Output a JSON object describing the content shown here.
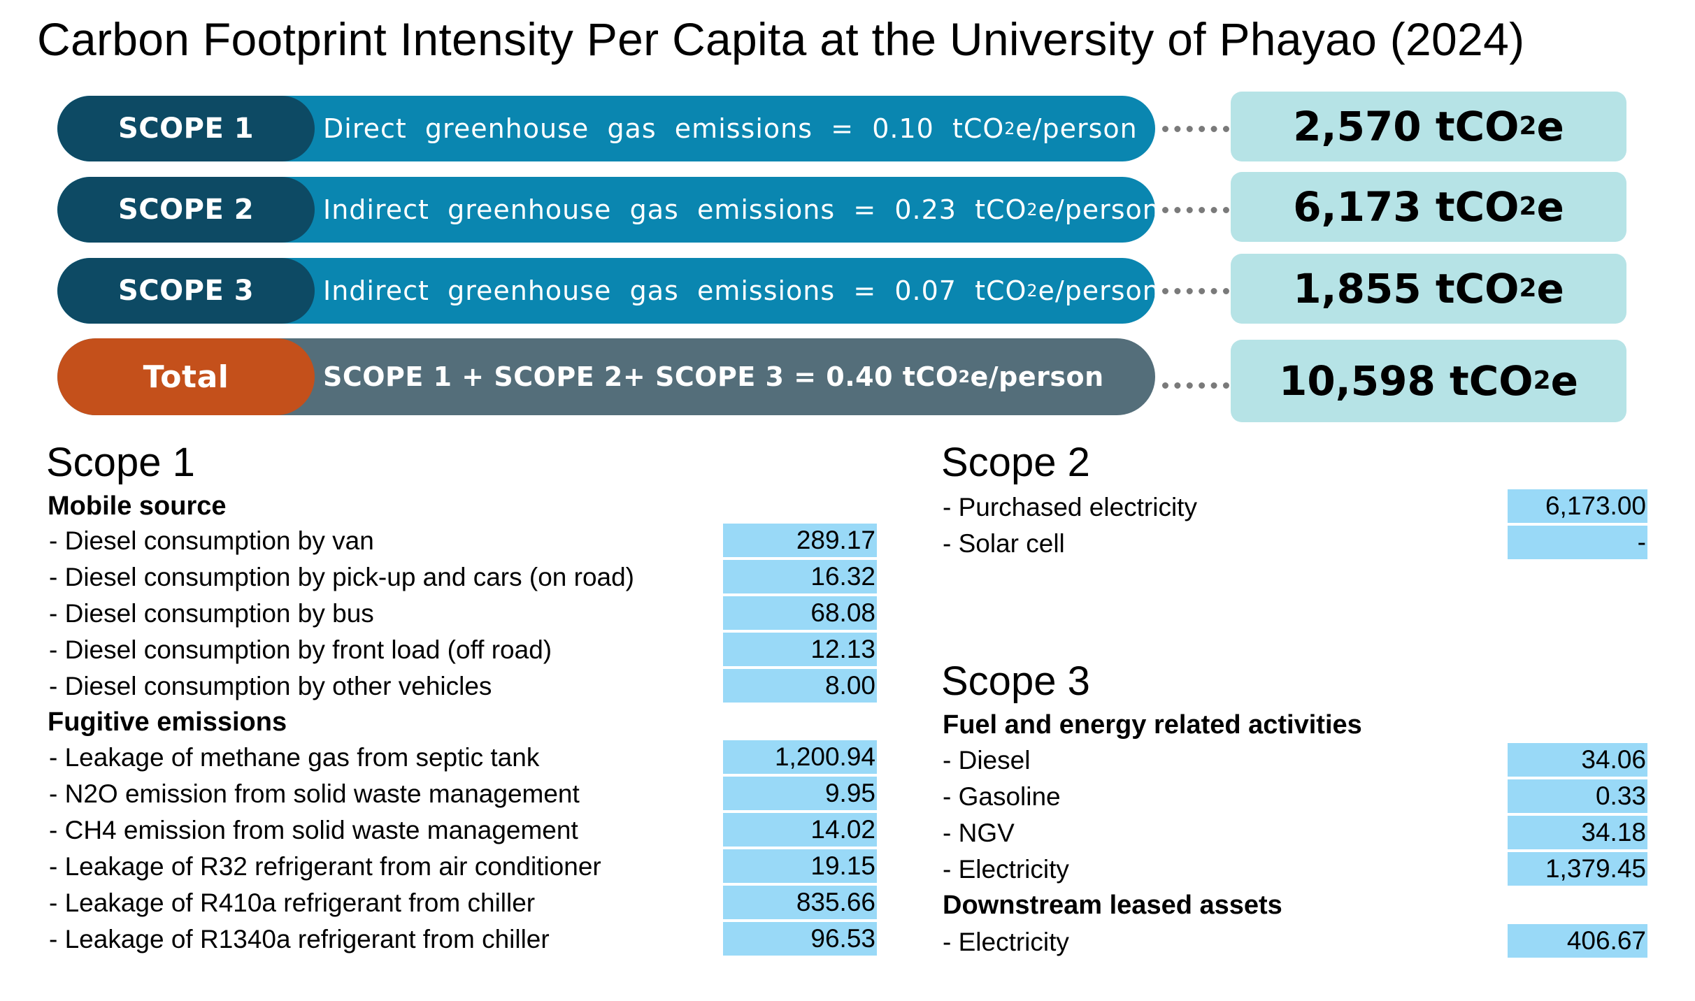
{
  "title": "Carbon Footprint Intensity Per Capita at the University of Phayao (2024)",
  "summary": [
    {
      "tag": "SCOPE 1",
      "desc_pre": "Direct  greenhouse  gas  emissions  =  0.10  tCO",
      "desc_sub": "2",
      "desc_post": "e/person",
      "value_pre": "2,570 tCO",
      "value_sub": "2",
      "value_post": "e"
    },
    {
      "tag": "SCOPE 2",
      "desc_pre": "Indirect  greenhouse  gas  emissions  =  0.23  tCO",
      "desc_sub": "2",
      "desc_post": "e/person",
      "value_pre": "6,173 tCO",
      "value_sub": "2",
      "value_post": "e"
    },
    {
      "tag": "SCOPE 3",
      "desc_pre": "Indirect  greenhouse  gas  emissions  =  0.07  tCO",
      "desc_sub": "2",
      "desc_post": "e/person",
      "value_pre": "1,855 tCO",
      "value_sub": "2",
      "value_post": "e"
    },
    {
      "tag": "Total",
      "desc_pre": "SCOPE 1 + SCOPE 2+ SCOPE 3 = 0.40 tCO",
      "desc_sub": "2",
      "desc_post": "e/person",
      "value_pre": "10,598 tCO",
      "value_sub": "2",
      "value_post": "e"
    }
  ],
  "colors": {
    "bar": "#0a86b0",
    "bar_tag": "#0d4a64",
    "total_bar": "#546e7a",
    "total_tag": "#c4501b",
    "value_box": "#b6e3e6",
    "cell": "#99d9f7"
  },
  "scope1": {
    "heading": "Scope 1",
    "mobile_heading": "Mobile source",
    "mobile": [
      {
        "label": " - Diesel consumption by van",
        "value": "289.17"
      },
      {
        "label": " - Diesel consumption by pick-up and cars (on road)",
        "value": "16.32"
      },
      {
        "label": " - Diesel consumption by bus",
        "value": "68.08"
      },
      {
        "label": " - Diesel consumption by front load (off road)",
        "value": "12.13"
      },
      {
        "label": " - Diesel consumption by other vehicles",
        "value": "8.00"
      }
    ],
    "fugitive_heading": "Fugitive emissions",
    "fugitive": [
      {
        "label": " - Leakage of methane gas from septic tank",
        "value": "1,200.94"
      },
      {
        "label": " - N2O emission from solid waste management",
        "value": "9.95"
      },
      {
        "label": " - CH4 emission from solid waste management",
        "value": "14.02"
      },
      {
        "label": " - Leakage of R32 refrigerant from air conditioner",
        "value": "19.15"
      },
      {
        "label": " - Leakage of R410a refrigerant from chiller",
        "value": "835.66"
      },
      {
        "label": " - Leakage of R1340a refrigerant from chiller",
        "value": "96.53"
      }
    ]
  },
  "scope2": {
    "heading": "Scope 2",
    "items": [
      {
        "label": " - Purchased electricity",
        "value": "6,173.00"
      },
      {
        "label": " - Solar cell",
        "value": "-"
      }
    ]
  },
  "scope3": {
    "heading": "Scope 3",
    "fuel_heading": "Fuel and energy related activities",
    "fuel": [
      {
        "label": " - Diesel",
        "value": "34.06"
      },
      {
        "label": " - Gasoline",
        "value": "0.33"
      },
      {
        "label": " - NGV",
        "value": "34.18"
      },
      {
        "label": " - Electricity",
        "value": "1,379.45"
      }
    ],
    "leased_heading": "Downstream leased assets",
    "leased": [
      {
        "label": " - Electricity",
        "value": "406.67"
      }
    ]
  }
}
